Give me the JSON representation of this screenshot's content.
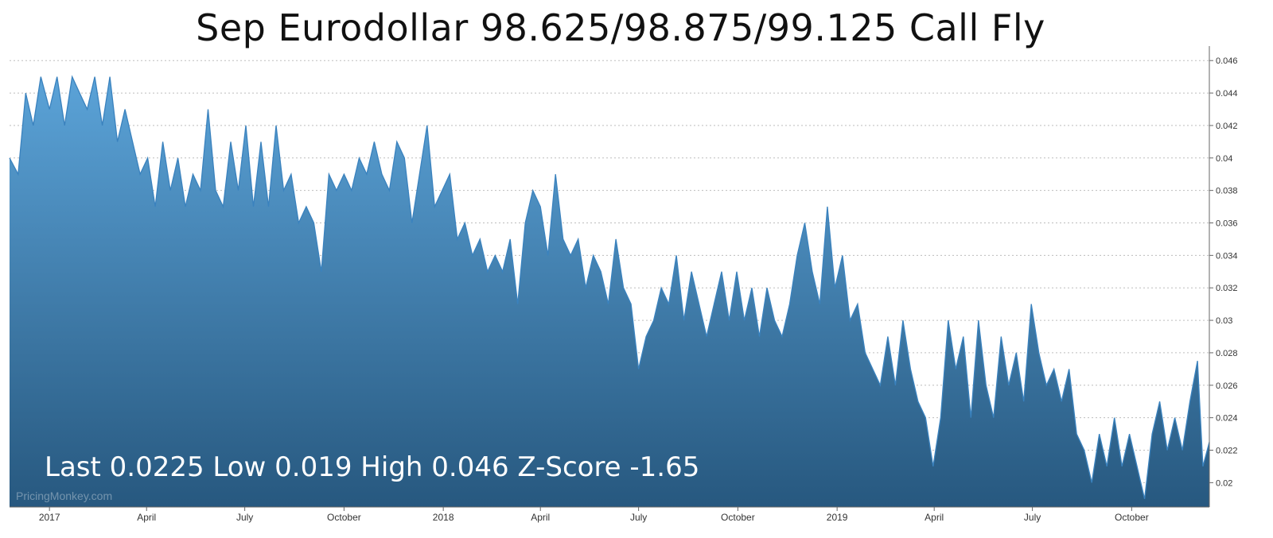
{
  "chart_data": {
    "type": "area",
    "title": "Sep Eurodollar 98.625/98.875/99.125 Call Fly",
    "stats_line": "Last 0.0225 Low 0.019 High 0.046 Z-Score -1.65",
    "watermark": "PricingMonkey.com",
    "ylim": [
      0.0185,
      0.0465
    ],
    "y_ticks": [
      "0.02",
      "0.022",
      "0.024",
      "0.026",
      "0.028",
      "0.03",
      "0.032",
      "0.034",
      "0.036",
      "0.038",
      "0.04",
      "0.042",
      "0.044",
      "0.046"
    ],
    "x_ticks": [
      {
        "label": "2017",
        "x": "2017-01-01"
      },
      {
        "label": "April",
        "x": "2017-04-01"
      },
      {
        "label": "July",
        "x": "2017-07-01"
      },
      {
        "label": "October",
        "x": "2017-10-01"
      },
      {
        "label": "2018",
        "x": "2018-01-01"
      },
      {
        "label": "April",
        "x": "2018-04-01"
      },
      {
        "label": "July",
        "x": "2018-07-01"
      },
      {
        "label": "October",
        "x": "2018-10-01"
      },
      {
        "label": "2019",
        "x": "2019-01-01"
      },
      {
        "label": "April",
        "x": "2019-04-01"
      },
      {
        "label": "July",
        "x": "2019-07-01"
      },
      {
        "label": "October",
        "x": "2019-10-01"
      }
    ],
    "xlim": [
      "2016-11-25",
      "2019-12-12"
    ],
    "grid": true,
    "series": [
      {
        "color": "#3a82be",
        "fill_top": "#5ba3d8",
        "fill_bottom": "#27587f",
        "points": [
          [
            "2016-11-25",
            0.04
          ],
          [
            "2016-12-03",
            0.039
          ],
          [
            "2016-12-10",
            0.044
          ],
          [
            "2016-12-17",
            0.042
          ],
          [
            "2016-12-24",
            0.045
          ],
          [
            "2017-01-01",
            0.043
          ],
          [
            "2017-01-08",
            0.045
          ],
          [
            "2017-01-15",
            0.042
          ],
          [
            "2017-01-22",
            0.045
          ],
          [
            "2017-01-29",
            0.044
          ],
          [
            "2017-02-05",
            0.043
          ],
          [
            "2017-02-12",
            0.045
          ],
          [
            "2017-02-19",
            0.042
          ],
          [
            "2017-02-26",
            0.045
          ],
          [
            "2017-03-05",
            0.041
          ],
          [
            "2017-03-12",
            0.043
          ],
          [
            "2017-03-19",
            0.041
          ],
          [
            "2017-03-26",
            0.039
          ],
          [
            "2017-04-02",
            0.04
          ],
          [
            "2017-04-09",
            0.037
          ],
          [
            "2017-04-16",
            0.041
          ],
          [
            "2017-04-23",
            0.038
          ],
          [
            "2017-04-30",
            0.04
          ],
          [
            "2017-05-07",
            0.037
          ],
          [
            "2017-05-14",
            0.039
          ],
          [
            "2017-05-21",
            0.038
          ],
          [
            "2017-05-28",
            0.043
          ],
          [
            "2017-06-04",
            0.038
          ],
          [
            "2017-06-11",
            0.037
          ],
          [
            "2017-06-18",
            0.041
          ],
          [
            "2017-06-25",
            0.038
          ],
          [
            "2017-07-02",
            0.042
          ],
          [
            "2017-07-09",
            0.037
          ],
          [
            "2017-07-16",
            0.041
          ],
          [
            "2017-07-23",
            0.037
          ],
          [
            "2017-07-30",
            0.042
          ],
          [
            "2017-08-06",
            0.038
          ],
          [
            "2017-08-13",
            0.039
          ],
          [
            "2017-08-20",
            0.036
          ],
          [
            "2017-08-27",
            0.037
          ],
          [
            "2017-09-03",
            0.036
          ],
          [
            "2017-09-10",
            0.033
          ],
          [
            "2017-09-17",
            0.039
          ],
          [
            "2017-09-24",
            0.038
          ],
          [
            "2017-10-01",
            0.039
          ],
          [
            "2017-10-08",
            0.038
          ],
          [
            "2017-10-15",
            0.04
          ],
          [
            "2017-10-22",
            0.039
          ],
          [
            "2017-10-29",
            0.041
          ],
          [
            "2017-11-05",
            0.039
          ],
          [
            "2017-11-12",
            0.038
          ],
          [
            "2017-11-19",
            0.041
          ],
          [
            "2017-11-26",
            0.04
          ],
          [
            "2017-12-03",
            0.036
          ],
          [
            "2017-12-10",
            0.039
          ],
          [
            "2017-12-17",
            0.042
          ],
          [
            "2017-12-24",
            0.037
          ],
          [
            "2017-12-31",
            0.038
          ],
          [
            "2018-01-07",
            0.039
          ],
          [
            "2018-01-14",
            0.035
          ],
          [
            "2018-01-21",
            0.036
          ],
          [
            "2018-01-28",
            0.034
          ],
          [
            "2018-02-04",
            0.035
          ],
          [
            "2018-02-11",
            0.033
          ],
          [
            "2018-02-18",
            0.034
          ],
          [
            "2018-02-25",
            0.033
          ],
          [
            "2018-03-04",
            0.035
          ],
          [
            "2018-03-11",
            0.031
          ],
          [
            "2018-03-18",
            0.036
          ],
          [
            "2018-03-25",
            0.038
          ],
          [
            "2018-04-01",
            0.037
          ],
          [
            "2018-04-08",
            0.034
          ],
          [
            "2018-04-15",
            0.039
          ],
          [
            "2018-04-22",
            0.035
          ],
          [
            "2018-04-29",
            0.034
          ],
          [
            "2018-05-06",
            0.035
          ],
          [
            "2018-05-13",
            0.032
          ],
          [
            "2018-05-20",
            0.034
          ],
          [
            "2018-05-27",
            0.033
          ],
          [
            "2018-06-03",
            0.031
          ],
          [
            "2018-06-10",
            0.035
          ],
          [
            "2018-06-17",
            0.032
          ],
          [
            "2018-06-24",
            0.031
          ],
          [
            "2018-07-01",
            0.027
          ],
          [
            "2018-07-08",
            0.029
          ],
          [
            "2018-07-15",
            0.03
          ],
          [
            "2018-07-22",
            0.032
          ],
          [
            "2018-07-29",
            0.031
          ],
          [
            "2018-08-05",
            0.034
          ],
          [
            "2018-08-12",
            0.03
          ],
          [
            "2018-08-19",
            0.033
          ],
          [
            "2018-08-26",
            0.031
          ],
          [
            "2018-09-02",
            0.029
          ],
          [
            "2018-09-09",
            0.031
          ],
          [
            "2018-09-16",
            0.033
          ],
          [
            "2018-09-23",
            0.03
          ],
          [
            "2018-09-30",
            0.033
          ],
          [
            "2018-10-07",
            0.03
          ],
          [
            "2018-10-14",
            0.032
          ],
          [
            "2018-10-21",
            0.029
          ],
          [
            "2018-10-28",
            0.032
          ],
          [
            "2018-11-04",
            0.03
          ],
          [
            "2018-11-11",
            0.029
          ],
          [
            "2018-11-18",
            0.031
          ],
          [
            "2018-11-25",
            0.034
          ],
          [
            "2018-12-02",
            0.036
          ],
          [
            "2018-12-09",
            0.033
          ],
          [
            "2018-12-16",
            0.031
          ],
          [
            "2018-12-23",
            0.037
          ],
          [
            "2018-12-30",
            0.032
          ],
          [
            "2019-01-06",
            0.034
          ],
          [
            "2019-01-13",
            0.03
          ],
          [
            "2019-01-20",
            0.031
          ],
          [
            "2019-01-27",
            0.028
          ],
          [
            "2019-02-03",
            0.027
          ],
          [
            "2019-02-10",
            0.026
          ],
          [
            "2019-02-17",
            0.029
          ],
          [
            "2019-02-24",
            0.026
          ],
          [
            "2019-03-03",
            0.03
          ],
          [
            "2019-03-10",
            0.027
          ],
          [
            "2019-03-17",
            0.025
          ],
          [
            "2019-03-24",
            0.024
          ],
          [
            "2019-03-31",
            0.021
          ],
          [
            "2019-04-07",
            0.024
          ],
          [
            "2019-04-14",
            0.03
          ],
          [
            "2019-04-21",
            0.027
          ],
          [
            "2019-04-28",
            0.029
          ],
          [
            "2019-05-05",
            0.024
          ],
          [
            "2019-05-12",
            0.03
          ],
          [
            "2019-05-19",
            0.026
          ],
          [
            "2019-05-26",
            0.024
          ],
          [
            "2019-06-02",
            0.029
          ],
          [
            "2019-06-09",
            0.026
          ],
          [
            "2019-06-16",
            0.028
          ],
          [
            "2019-06-23",
            0.025
          ],
          [
            "2019-06-30",
            0.031
          ],
          [
            "2019-07-07",
            0.028
          ],
          [
            "2019-07-14",
            0.026
          ],
          [
            "2019-07-21",
            0.027
          ],
          [
            "2019-07-28",
            0.025
          ],
          [
            "2019-08-04",
            0.027
          ],
          [
            "2019-08-11",
            0.023
          ],
          [
            "2019-08-18",
            0.022
          ],
          [
            "2019-08-25",
            0.02
          ],
          [
            "2019-09-01",
            0.023
          ],
          [
            "2019-09-08",
            0.021
          ],
          [
            "2019-09-15",
            0.024
          ],
          [
            "2019-09-22",
            0.021
          ],
          [
            "2019-09-29",
            0.023
          ],
          [
            "2019-10-06",
            0.021
          ],
          [
            "2019-10-13",
            0.019
          ],
          [
            "2019-10-20",
            0.023
          ],
          [
            "2019-10-27",
            0.025
          ],
          [
            "2019-11-03",
            0.022
          ],
          [
            "2019-11-10",
            0.024
          ],
          [
            "2019-11-17",
            0.022
          ],
          [
            "2019-11-24",
            0.025
          ],
          [
            "2019-12-01",
            0.0275
          ],
          [
            "2019-12-06",
            0.021
          ],
          [
            "2019-12-12",
            0.0225
          ]
        ]
      }
    ]
  }
}
